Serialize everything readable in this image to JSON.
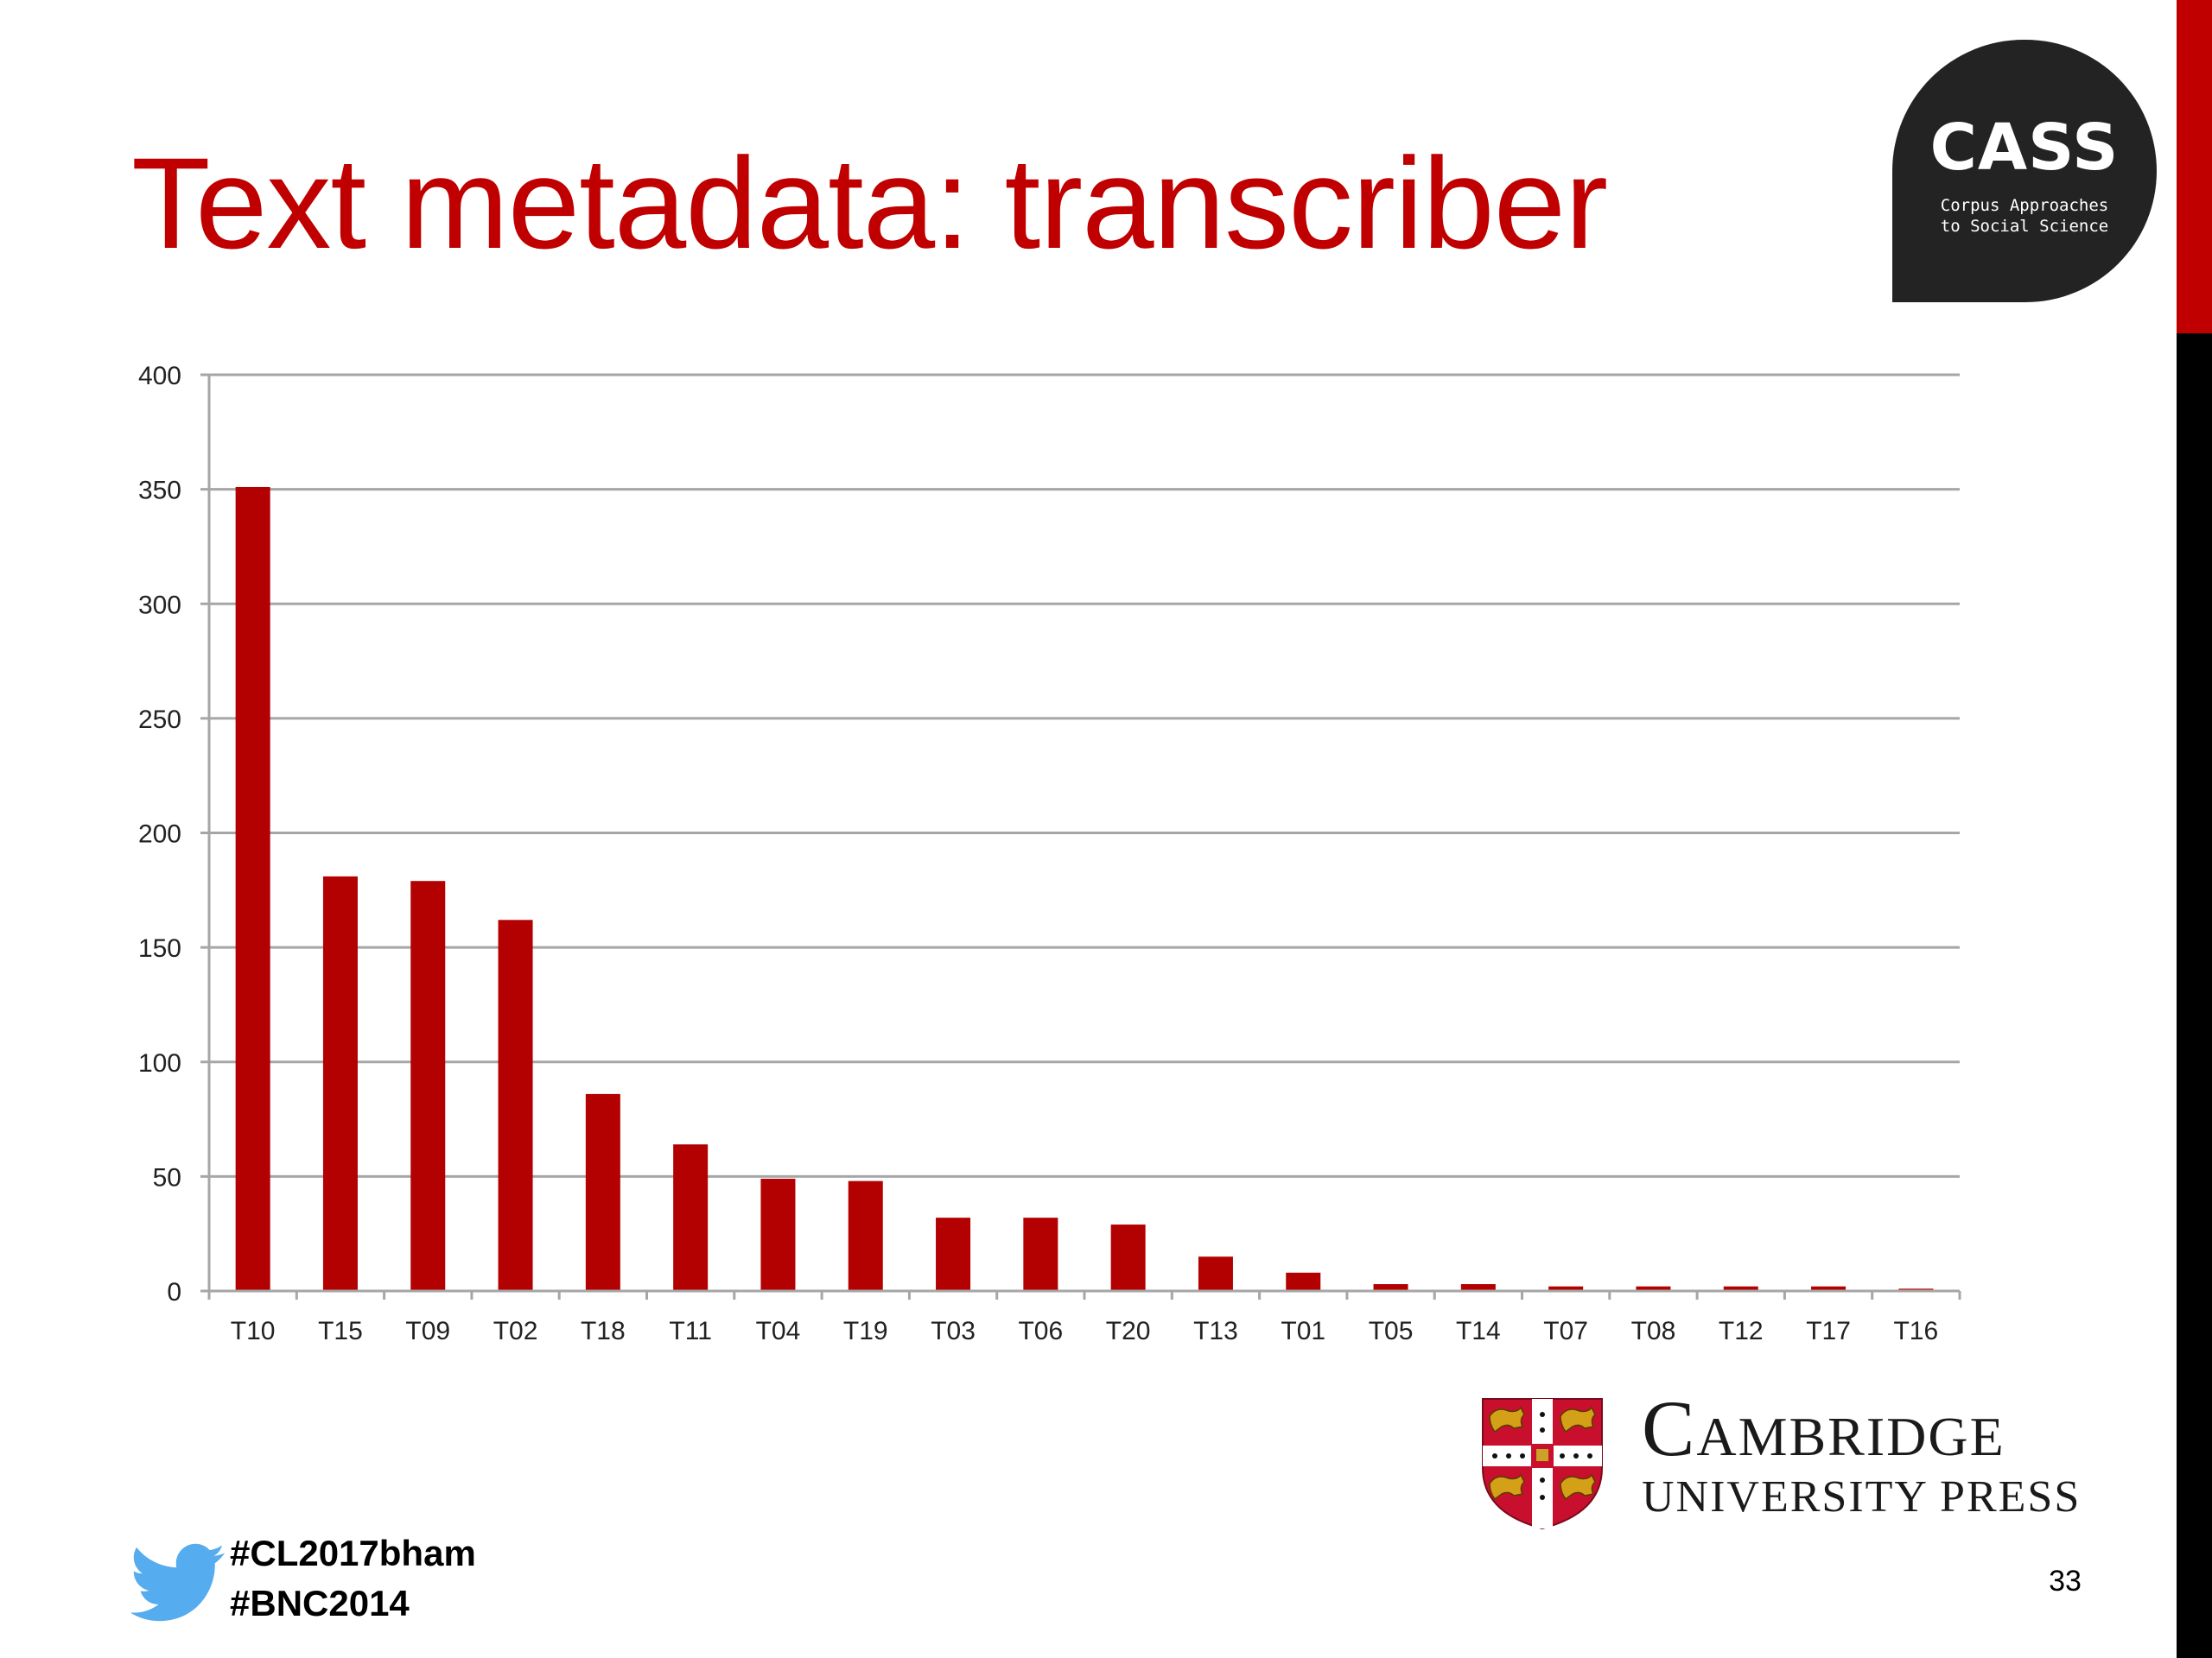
{
  "slide": {
    "title": "Text metadata: transcriber",
    "page_number": "33"
  },
  "cass_logo": {
    "name": "CASS",
    "tagline_line1": "Corpus Approaches",
    "tagline_line2": "to Social Science"
  },
  "publisher_logo": {
    "line1": "Cambridge",
    "line2": "University Press"
  },
  "hashtags": [
    "#CL2017bham",
    "#BNC2014"
  ],
  "colors": {
    "title": "#c00000",
    "bar": "#b30000",
    "gridline": "#a6a6a6",
    "side_bar_top": "#c00000",
    "side_bar_bottom": "#000000",
    "twitter": "#55acee"
  },
  "icons": [
    "twitter-bird-icon",
    "university-crest-icon"
  ],
  "chart_data": {
    "type": "bar",
    "title": "",
    "xlabel": "",
    "ylabel": "",
    "ylim": [
      0,
      400
    ],
    "yticks": [
      0,
      50,
      100,
      150,
      200,
      250,
      300,
      350,
      400
    ],
    "grid": true,
    "legend": "none",
    "categories": [
      "T10",
      "T15",
      "T09",
      "T02",
      "T18",
      "T11",
      "T04",
      "T19",
      "T03",
      "T06",
      "T20",
      "T13",
      "T01",
      "T05",
      "T14",
      "T07",
      "T08",
      "T12",
      "T17",
      "T16"
    ],
    "values": [
      351,
      181,
      179,
      162,
      86,
      64,
      49,
      48,
      32,
      32,
      29,
      15,
      8,
      3,
      3,
      2,
      2,
      2,
      2,
      1
    ]
  }
}
